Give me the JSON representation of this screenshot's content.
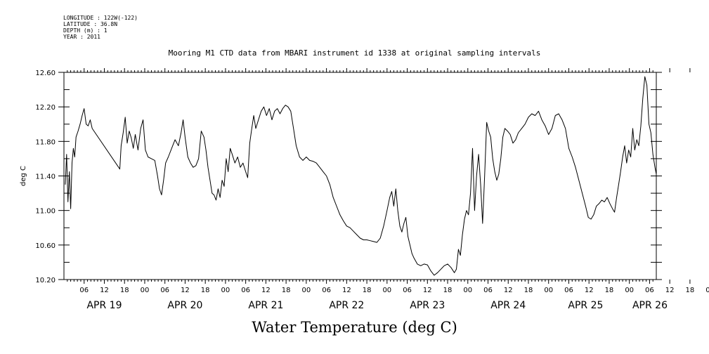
{
  "header": {
    "meta_lines": [
      "LONGITUDE : 122W(-122)",
      "LATITUDE : 36.8N",
      "DEPTH (m) : 1",
      "YEAR : 2011"
    ],
    "title": "Mooring M1 CTD data from MBARI instrument id 1338 at original sampling intervals"
  },
  "chart_data": {
    "type": "line",
    "title": "Mooring M1 CTD data from MBARI instrument id 1338 at original sampling intervals",
    "xlabel": "Water Temperature (deg C)",
    "ylabel": "deg C",
    "ylim": [
      10.2,
      12.6
    ],
    "xlim_hours": [
      0,
      176
    ],
    "y_ticks": [
      "10.20",
      "10.60",
      "11.00",
      "11.40",
      "11.80",
      "12.20",
      "12.60"
    ],
    "x_hour_ticks": [
      "06",
      "12",
      "18",
      "00",
      "06",
      "12",
      "18",
      "00",
      "06",
      "12",
      "18",
      "00",
      "06",
      "12",
      "18",
      "00",
      "06",
      "12",
      "18",
      "00",
      "06",
      "12",
      "18",
      "00",
      "06",
      "12",
      "18",
      "00",
      "06",
      "12",
      "18",
      "00"
    ],
    "day_labels": [
      "APR 19",
      "APR 20",
      "APR 21",
      "APR 22",
      "APR 23",
      "APR 24",
      "APR 25",
      "APR 26"
    ],
    "grid": false,
    "x_unit": "hours since APR 19 00:00 (2011)",
    "series": [
      {
        "values": [
          [
            0.4,
            11.3
          ],
          [
            0.8,
            11.65
          ],
          [
            1.2,
            11.1
          ],
          [
            1.6,
            11.45
          ],
          [
            2.0,
            11.02
          ],
          [
            2.4,
            11.55
          ],
          [
            2.8,
            11.72
          ],
          [
            3.2,
            11.62
          ],
          [
            3.6,
            11.85
          ],
          [
            4.2,
            11.92
          ],
          [
            4.8,
            12.0
          ],
          [
            5.4,
            12.1
          ],
          [
            6.0,
            12.18
          ],
          [
            6.6,
            12.0
          ],
          [
            7.2,
            11.98
          ],
          [
            7.8,
            12.05
          ],
          [
            8.4,
            11.95
          ],
          [
            16.6,
            11.48
          ],
          [
            17.0,
            11.75
          ],
          [
            17.6,
            11.9
          ],
          [
            18.2,
            12.08
          ],
          [
            18.8,
            11.78
          ],
          [
            19.4,
            11.92
          ],
          [
            20.0,
            11.84
          ],
          [
            20.6,
            11.72
          ],
          [
            21.2,
            11.88
          ],
          [
            22.0,
            11.7
          ],
          [
            22.8,
            11.95
          ],
          [
            23.5,
            12.05
          ],
          [
            24.2,
            11.7
          ],
          [
            25.0,
            11.62
          ],
          [
            26.0,
            11.6
          ],
          [
            27.0,
            11.58
          ],
          [
            27.8,
            11.4
          ],
          [
            28.4,
            11.25
          ],
          [
            29.0,
            11.18
          ],
          [
            29.6,
            11.35
          ],
          [
            30.2,
            11.55
          ],
          [
            31.0,
            11.62
          ],
          [
            32.0,
            11.72
          ],
          [
            33.0,
            11.82
          ],
          [
            34.0,
            11.75
          ],
          [
            34.8,
            11.9
          ],
          [
            35.4,
            12.05
          ],
          [
            36.0,
            11.85
          ],
          [
            36.8,
            11.62
          ],
          [
            37.6,
            11.55
          ],
          [
            38.4,
            11.5
          ],
          [
            39.2,
            11.52
          ],
          [
            40.0,
            11.6
          ],
          [
            40.8,
            11.92
          ],
          [
            41.6,
            11.85
          ],
          [
            42.2,
            11.7
          ],
          [
            42.8,
            11.5
          ],
          [
            43.4,
            11.35
          ],
          [
            44.0,
            11.2
          ],
          [
            44.6,
            11.18
          ],
          [
            45.2,
            11.12
          ],
          [
            45.8,
            11.25
          ],
          [
            46.4,
            11.15
          ],
          [
            47.0,
            11.35
          ],
          [
            47.6,
            11.28
          ],
          [
            48.2,
            11.6
          ],
          [
            48.8,
            11.45
          ],
          [
            49.4,
            11.72
          ],
          [
            50.0,
            11.65
          ],
          [
            50.8,
            11.55
          ],
          [
            51.6,
            11.62
          ],
          [
            52.4,
            11.5
          ],
          [
            53.2,
            11.55
          ],
          [
            54.0,
            11.45
          ],
          [
            54.6,
            11.38
          ],
          [
            55.2,
            11.78
          ],
          [
            55.8,
            11.95
          ],
          [
            56.4,
            12.1
          ],
          [
            57.0,
            11.95
          ],
          [
            57.8,
            12.05
          ],
          [
            58.6,
            12.15
          ],
          [
            59.4,
            12.2
          ],
          [
            60.2,
            12.1
          ],
          [
            61.0,
            12.18
          ],
          [
            61.8,
            12.05
          ],
          [
            62.6,
            12.15
          ],
          [
            63.4,
            12.18
          ],
          [
            64.2,
            12.12
          ],
          [
            65.0,
            12.18
          ],
          [
            65.8,
            12.22
          ],
          [
            66.6,
            12.2
          ],
          [
            67.4,
            12.15
          ],
          [
            68.2,
            11.95
          ],
          [
            69.0,
            11.75
          ],
          [
            70.0,
            11.62
          ],
          [
            71.0,
            11.58
          ],
          [
            72.0,
            11.62
          ],
          [
            73.0,
            11.58
          ],
          [
            74.0,
            11.57
          ],
          [
            75.0,
            11.55
          ],
          [
            76.0,
            11.5
          ],
          [
            77.0,
            11.45
          ],
          [
            78.0,
            11.4
          ],
          [
            79.0,
            11.3
          ],
          [
            80.0,
            11.15
          ],
          [
            81.0,
            11.05
          ],
          [
            82.0,
            10.95
          ],
          [
            83.0,
            10.88
          ],
          [
            84.0,
            10.82
          ],
          [
            85.0,
            10.8
          ],
          [
            86.0,
            10.76
          ],
          [
            87.0,
            10.72
          ],
          [
            88.0,
            10.68
          ],
          [
            89.0,
            10.66
          ],
          [
            90.0,
            10.66
          ],
          [
            91.0,
            10.65
          ],
          [
            92.0,
            10.64
          ],
          [
            93.0,
            10.63
          ],
          [
            94.0,
            10.68
          ],
          [
            95.0,
            10.82
          ],
          [
            96.0,
            11.0
          ],
          [
            96.8,
            11.15
          ],
          [
            97.4,
            11.22
          ],
          [
            98.0,
            11.05
          ],
          [
            98.6,
            11.25
          ],
          [
            99.2,
            11.0
          ],
          [
            99.8,
            10.82
          ],
          [
            100.4,
            10.75
          ],
          [
            101.0,
            10.85
          ],
          [
            101.6,
            10.92
          ],
          [
            102.2,
            10.7
          ],
          [
            102.8,
            10.6
          ],
          [
            103.4,
            10.5
          ],
          [
            104.0,
            10.45
          ],
          [
            105.0,
            10.38
          ],
          [
            106.0,
            10.36
          ],
          [
            107.0,
            10.38
          ],
          [
            108.0,
            10.37
          ],
          [
            109.0,
            10.3
          ],
          [
            110.0,
            10.25
          ],
          [
            111.0,
            10.28
          ],
          [
            112.0,
            10.32
          ],
          [
            113.0,
            10.36
          ],
          [
            114.0,
            10.38
          ],
          [
            115.0,
            10.34
          ],
          [
            116.0,
            10.28
          ],
          [
            116.6,
            10.32
          ],
          [
            117.2,
            10.55
          ],
          [
            117.8,
            10.48
          ],
          [
            118.4,
            10.72
          ],
          [
            119.0,
            10.9
          ],
          [
            119.6,
            11.0
          ],
          [
            120.2,
            10.95
          ],
          [
            120.8,
            11.2
          ],
          [
            121.4,
            11.72
          ],
          [
            122.0,
            11.0
          ],
          [
            122.6,
            11.4
          ],
          [
            123.2,
            11.65
          ],
          [
            123.8,
            11.3
          ],
          [
            124.4,
            10.85
          ],
          [
            125.0,
            11.4
          ],
          [
            125.6,
            12.02
          ],
          [
            126.2,
            11.92
          ],
          [
            126.8,
            11.85
          ],
          [
            127.4,
            11.6
          ],
          [
            128.0,
            11.45
          ],
          [
            128.6,
            11.35
          ],
          [
            129.2,
            11.42
          ],
          [
            129.8,
            11.6
          ],
          [
            130.4,
            11.85
          ],
          [
            131.0,
            11.95
          ],
          [
            131.8,
            11.92
          ],
          [
            132.6,
            11.88
          ],
          [
            133.4,
            11.78
          ],
          [
            134.2,
            11.82
          ],
          [
            135.0,
            11.9
          ],
          [
            136.0,
            11.95
          ],
          [
            137.0,
            12.0
          ],
          [
            138.0,
            12.08
          ],
          [
            139.0,
            12.12
          ],
          [
            140.0,
            12.1
          ],
          [
            141.0,
            12.15
          ],
          [
            142.0,
            12.05
          ],
          [
            143.0,
            11.98
          ],
          [
            144.0,
            11.88
          ],
          [
            145.0,
            11.95
          ],
          [
            146.0,
            12.1
          ],
          [
            147.0,
            12.12
          ],
          [
            148.0,
            12.05
          ],
          [
            149.0,
            11.95
          ],
          [
            150.0,
            11.72
          ],
          [
            151.0,
            11.62
          ],
          [
            152.0,
            11.5
          ],
          [
            153.0,
            11.35
          ],
          [
            154.0,
            11.2
          ],
          [
            155.0,
            11.05
          ],
          [
            155.8,
            10.92
          ],
          [
            156.6,
            10.9
          ],
          [
            157.4,
            10.95
          ],
          [
            158.2,
            11.05
          ],
          [
            159.0,
            11.08
          ],
          [
            159.8,
            11.12
          ],
          [
            160.6,
            11.1
          ],
          [
            161.4,
            11.15
          ],
          [
            162.2,
            11.08
          ],
          [
            163.0,
            11.02
          ],
          [
            163.6,
            10.98
          ],
          [
            164.2,
            11.15
          ],
          [
            164.8,
            11.3
          ],
          [
            165.4,
            11.45
          ],
          [
            166.0,
            11.62
          ],
          [
            166.6,
            11.75
          ],
          [
            167.2,
            11.55
          ],
          [
            167.8,
            11.7
          ],
          [
            168.4,
            11.62
          ],
          [
            169.0,
            11.95
          ],
          [
            169.6,
            11.7
          ],
          [
            170.2,
            11.82
          ],
          [
            170.8,
            11.75
          ],
          [
            171.4,
            11.98
          ],
          [
            172.0,
            12.3
          ],
          [
            172.6,
            12.55
          ],
          [
            173.2,
            12.45
          ],
          [
            173.8,
            12.0
          ],
          [
            174.4,
            11.9
          ],
          [
            175.0,
            11.65
          ],
          [
            175.6,
            11.5
          ],
          [
            176.0,
            11.42
          ]
        ]
      }
    ]
  }
}
